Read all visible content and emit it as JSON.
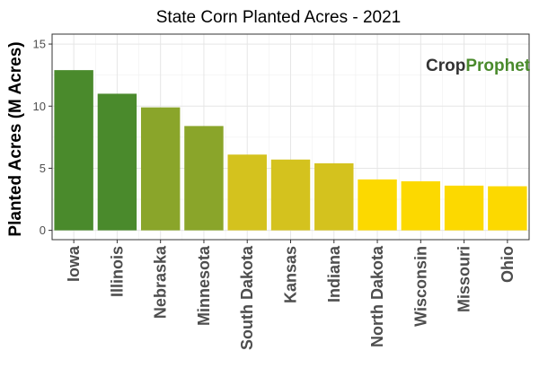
{
  "chart_data": {
    "type": "bar",
    "title": "State Corn Planted Acres - 2021",
    "xlabel": "",
    "ylabel": "Planted Acres (M Acres)",
    "categories": [
      "Iowa",
      "Illinois",
      "Nebraska",
      "Minnesota",
      "South Dakota",
      "Kansas",
      "Indiana",
      "North Dakota",
      "Wisconsin",
      "Missouri",
      "Ohio"
    ],
    "values": [
      12.9,
      11.0,
      9.9,
      8.4,
      6.1,
      5.7,
      5.4,
      4.1,
      3.95,
      3.6,
      3.55
    ],
    "bar_colors": [
      "#4a8a2c",
      "#4a8a2c",
      "#8aa52a",
      "#8aa52a",
      "#d4c21e",
      "#d4c21e",
      "#d4c21e",
      "#fcd900",
      "#fcd900",
      "#fcd900",
      "#fcd900"
    ],
    "ylim": [
      -0.75,
      15.8
    ],
    "yticks": [
      0,
      5,
      10,
      15
    ],
    "grid": true,
    "legend": "none"
  },
  "logo": {
    "text_part1": "Crop",
    "text_part2": "Prophet",
    "color_dark": "#333333",
    "color_green": "#4a8a2c"
  }
}
